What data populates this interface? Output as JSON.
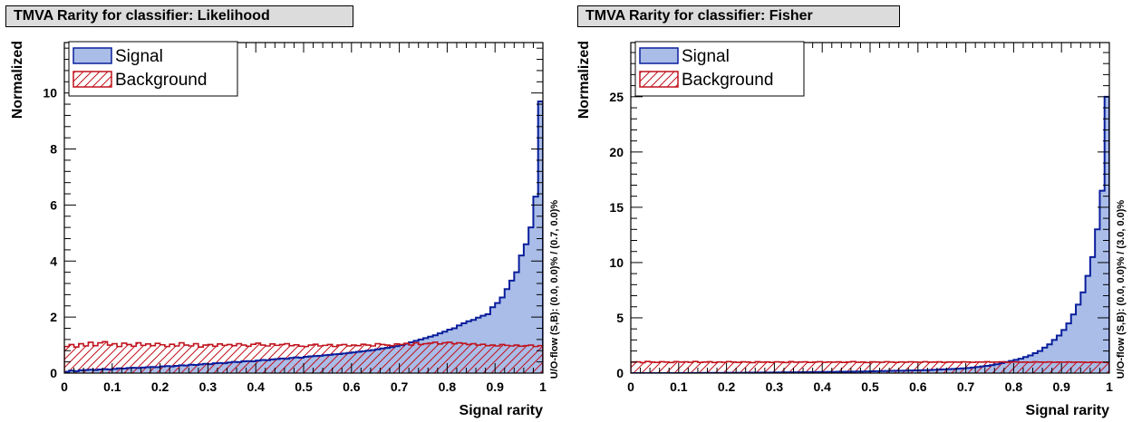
{
  "colors": {
    "signal_fill": "#a9bde8",
    "signal_line": "#0a1e9c",
    "background_line": "#c1121c"
  },
  "chart_data": [
    {
      "type": "histogram",
      "title": "TMVA Rarity for classifier: Likelihood",
      "xlabel": "Signal rarity",
      "ylabel": "Normalized",
      "xlim": [
        0,
        1
      ],
      "ylim": [
        0,
        11.8
      ],
      "xticks": [
        "0",
        "0.1",
        "0.2",
        "0.3",
        "0.4",
        "0.5",
        "0.6",
        "0.7",
        "0.8",
        "0.9",
        "1"
      ],
      "yticks": [
        "0",
        "2",
        "4",
        "6",
        "8",
        "10"
      ],
      "overflow_label": "U/O-flow (S,B): (0.0, 0.0)% / (0.7, 0.0)%",
      "legend": {
        "position": "top-left",
        "entries": [
          "Signal",
          "Background"
        ]
      },
      "bin_width": 0.01,
      "series": [
        {
          "name": "Signal",
          "values": [
            0.05,
            0.09,
            0.07,
            0.1,
            0.11,
            0.12,
            0.11,
            0.13,
            0.14,
            0.13,
            0.15,
            0.17,
            0.16,
            0.18,
            0.19,
            0.18,
            0.2,
            0.21,
            0.22,
            0.21,
            0.24,
            0.25,
            0.24,
            0.26,
            0.28,
            0.27,
            0.3,
            0.29,
            0.31,
            0.33,
            0.32,
            0.35,
            0.36,
            0.35,
            0.38,
            0.4,
            0.39,
            0.42,
            0.43,
            0.42,
            0.45,
            0.47,
            0.46,
            0.49,
            0.5,
            0.52,
            0.51,
            0.54,
            0.56,
            0.55,
            0.58,
            0.6,
            0.61,
            0.62,
            0.64,
            0.65,
            0.67,
            0.68,
            0.7,
            0.72,
            0.74,
            0.76,
            0.78,
            0.8,
            0.82,
            0.85,
            0.88,
            0.9,
            0.93,
            0.96,
            1.0,
            1.05,
            1.1,
            1.15,
            1.2,
            1.25,
            1.3,
            1.35,
            1.42,
            1.48,
            1.55,
            1.6,
            1.7,
            1.78,
            1.85,
            1.9,
            1.98,
            2.05,
            2.1,
            2.35,
            2.5,
            2.7,
            3.0,
            3.3,
            3.6,
            4.2,
            4.6,
            5.2,
            6.3,
            9.7
          ]
        },
        {
          "name": "Background",
          "values": [
            0.95,
            1.02,
            0.93,
            1.05,
            0.97,
            1.1,
            0.98,
            1.08,
            1.12,
            1.0,
            1.05,
            0.95,
            1.07,
            1.02,
            0.96,
            1.08,
            0.99,
            1.04,
            0.98,
            1.06,
            1.01,
            0.95,
            1.03,
            0.97,
            1.08,
            1.0,
            0.97,
            1.05,
            0.93,
            1.0,
            1.02,
            0.96,
            1.04,
            0.99,
            1.02,
            0.98,
            1.05,
            1.0,
            0.96,
            1.03,
            1.07,
            1.0,
            0.97,
            1.04,
            0.99,
            1.02,
            1.05,
            0.98,
            1.01,
            0.96,
            0.95,
            1.0,
            1.03,
            0.97,
            0.99,
            1.02,
            0.95,
            1.0,
            1.02,
            0.97,
            1.0,
            0.98,
            1.03,
            1.0,
            0.97,
            1.05,
            1.02,
            1.0,
            0.98,
            1.04,
            1.02,
            1.06,
            1.0,
            1.08,
            1.02,
            1.05,
            1.07,
            1.1,
            1.04,
            1.08,
            1.1,
            1.05,
            1.08,
            1.06,
            1.02,
            1.05,
            1.0,
            1.03,
            0.98,
            1.0,
            0.97,
            1.02,
            0.99,
            0.97,
            1.0,
            0.96,
            0.98,
            1.0,
            0.95,
            0.98
          ]
        }
      ]
    },
    {
      "type": "histogram",
      "title": "TMVA Rarity for classifier: Fisher",
      "xlabel": "Signal rarity",
      "ylabel": "Normalized",
      "xlim": [
        0,
        1
      ],
      "ylim": [
        0,
        29.9
      ],
      "xticks": [
        "0",
        "0.1",
        "0.2",
        "0.3",
        "0.4",
        "0.5",
        "0.6",
        "0.7",
        "0.8",
        "0.9",
        "1"
      ],
      "yticks": [
        "0",
        "5",
        "10",
        "15",
        "20",
        "25"
      ],
      "overflow_label": "U/O-flow (S,B): (0.0, 0.0)% / (3.0, 0.0)%",
      "legend": {
        "position": "top-left",
        "entries": [
          "Signal",
          "Background"
        ]
      },
      "bin_width": 0.01,
      "series": [
        {
          "name": "Signal",
          "values": [
            0,
            0,
            0,
            0,
            0,
            0,
            0,
            0,
            0,
            0,
            0.01,
            0.01,
            0.01,
            0.01,
            0.01,
            0.02,
            0.02,
            0.02,
            0.02,
            0.02,
            0.03,
            0.03,
            0.03,
            0.03,
            0.04,
            0.04,
            0.04,
            0.05,
            0.05,
            0.05,
            0.06,
            0.06,
            0.07,
            0.07,
            0.07,
            0.08,
            0.08,
            0.09,
            0.09,
            0.1,
            0.1,
            0.11,
            0.11,
            0.12,
            0.12,
            0.13,
            0.13,
            0.14,
            0.14,
            0.15,
            0.16,
            0.17,
            0.18,
            0.19,
            0.2,
            0.21,
            0.22,
            0.23,
            0.24,
            0.25,
            0.26,
            0.27,
            0.28,
            0.3,
            0.32,
            0.34,
            0.36,
            0.38,
            0.4,
            0.43,
            0.46,
            0.5,
            0.55,
            0.6,
            0.66,
            0.72,
            0.8,
            0.9,
            1.0,
            1.1,
            1.2,
            1.3,
            1.45,
            1.6,
            1.8,
            2.0,
            2.3,
            2.6,
            3.0,
            3.4,
            3.9,
            4.5,
            5.3,
            6.2,
            7.3,
            8.8,
            10.5,
            13.0,
            16.5,
            25.0
          ]
        },
        {
          "name": "Background",
          "values": [
            1.0,
            1.02,
            0.95,
            1.05,
            1.0,
            0.97,
            1.03,
            1.0,
            0.96,
            1.04,
            1.0,
            1.02,
            0.98,
            1.05,
            0.97,
            1.0,
            1.03,
            0.96,
            1.01,
            0.98,
            1.04,
            1.0,
            0.97,
            1.02,
            1.0,
            0.95,
            1.03,
            0.99,
            1.01,
            0.97,
            1.02,
            1.0,
            0.96,
            1.04,
            0.99,
            1.0,
            1.02,
            0.97,
            1.0,
            1.03,
            0.98,
            1.01,
            0.99,
            1.02,
            0.97,
            1.0,
            1.04,
            0.98,
            1.0,
            0.96,
            1.02,
            1.0,
            0.98,
            1.03,
            1.0,
            0.97,
            1.01,
            0.99,
            1.02,
            1.0,
            0.98,
            1.03,
            0.99,
            1.0,
            1.02,
            0.97,
            1.0,
            1.01,
            0.99,
            1.02,
            1.0,
            0.98,
            1.01,
            1.0,
            1.03,
            0.99,
            1.0,
            1.02,
            0.98,
            1.0,
            1.01,
            0.99,
            1.0,
            0.98,
            1.02,
            1.0,
            0.99,
            1.01,
            0.98,
            1.0,
            0.99,
            1.01,
            0.98,
            1.0,
            0.99,
            0.97,
            1.0,
            0.98,
            0.99,
            0.97
          ]
        }
      ]
    }
  ]
}
